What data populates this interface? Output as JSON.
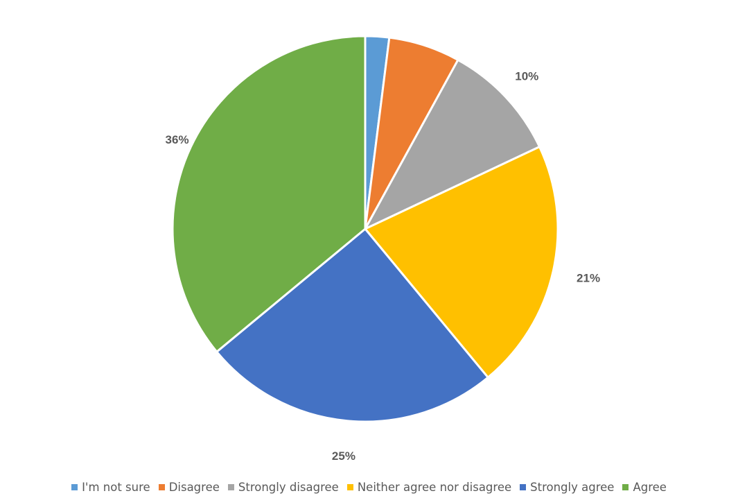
{
  "chart_data": {
    "type": "pie",
    "title": "",
    "start_angle_deg": 0,
    "direction": "clockwise",
    "slices": [
      {
        "label": "I'm not sure",
        "value": 2,
        "value_label": "2%",
        "color": "#5B9BD5"
      },
      {
        "label": "Disagree",
        "value": 6,
        "value_label": "6%",
        "color": "#ED7D31"
      },
      {
        "label": "Strongly disagree",
        "value": 10,
        "value_label": "10%",
        "color": "#A5A5A5"
      },
      {
        "label": "Neither agree nor disagree",
        "value": 21,
        "value_label": "21%",
        "color": "#FFC000"
      },
      {
        "label": "Strongly agree",
        "value": 25,
        "value_label": "25%",
        "color": "#4472C4"
      },
      {
        "label": "Agree",
        "value": 36,
        "value_label": "36%",
        "color": "#70AD47"
      }
    ],
    "legend_position": "bottom"
  }
}
